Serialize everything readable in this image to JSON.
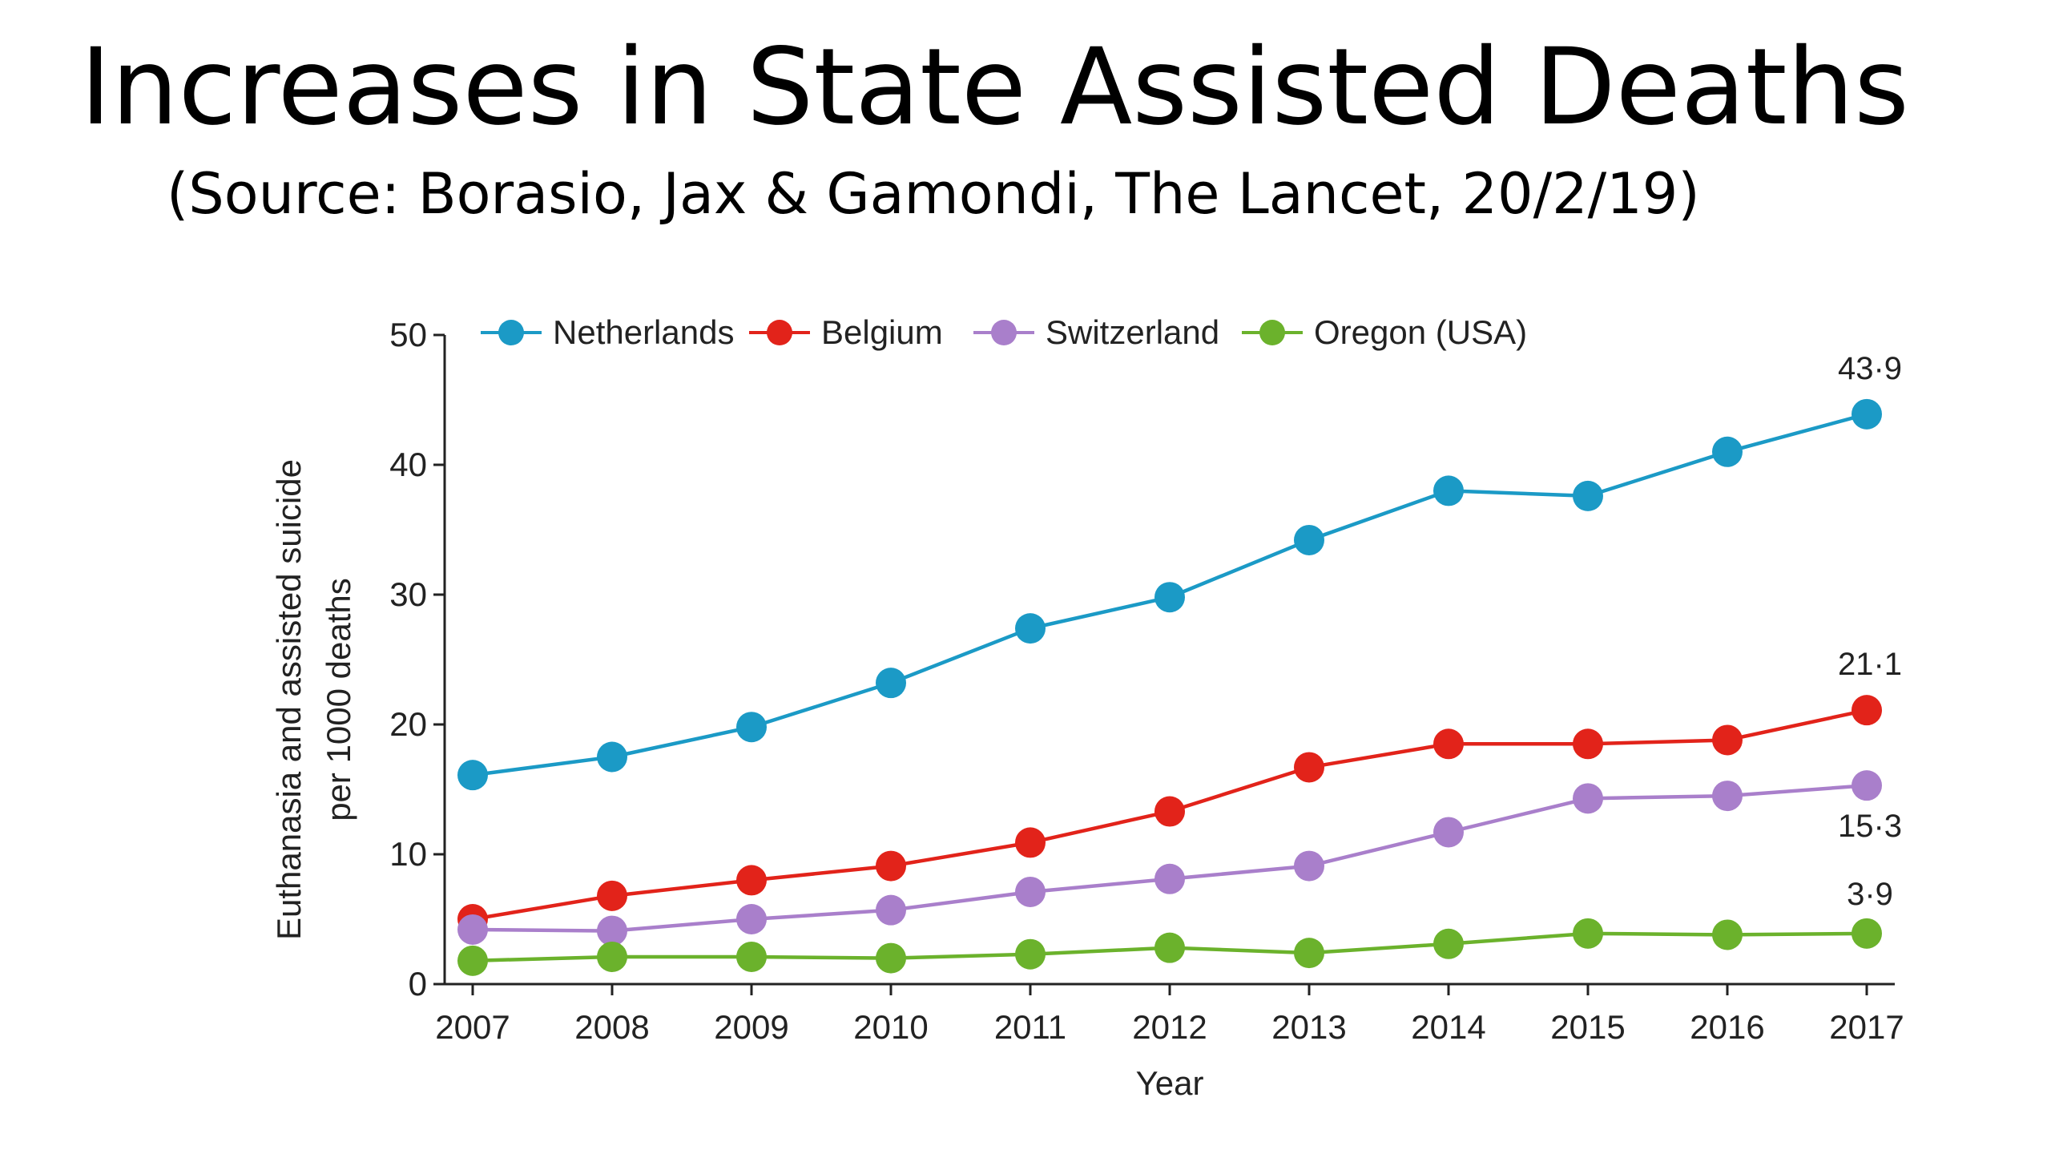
{
  "slide": {
    "title": "Increases in State Assisted Deaths",
    "subtitle": "(Source: Borasio, Jax & Gamondi, The Lancet, 20/2/19)"
  },
  "chart_data": {
    "type": "line",
    "x": [
      2007,
      2008,
      2009,
      2010,
      2011,
      2012,
      2013,
      2014,
      2015,
      2016,
      2017
    ],
    "xlabel": "Year",
    "ylabel_lines": [
      "Euthanasia and assisted suicide",
      "per 1000 deaths"
    ],
    "ylim": [
      0,
      50
    ],
    "yticks": [
      0,
      10,
      20,
      30,
      40,
      50
    ],
    "grid": false,
    "legend_position": "top",
    "series": [
      {
        "name": "Netherlands",
        "color": "#1b9ac6",
        "values": [
          16.1,
          17.5,
          19.8,
          23.2,
          27.4,
          29.8,
          34.2,
          38.0,
          37.6,
          41.0,
          43.9
        ],
        "end_label": "43·9"
      },
      {
        "name": "Belgium",
        "color": "#e2231a",
        "values": [
          5.0,
          6.8,
          8.0,
          9.1,
          10.9,
          13.3,
          16.7,
          18.5,
          18.5,
          18.8,
          21.1
        ],
        "end_label": "21·1"
      },
      {
        "name": "Switzerland",
        "color": "#a97fcb",
        "values": [
          4.2,
          4.1,
          5.0,
          5.7,
          7.1,
          8.1,
          9.1,
          11.7,
          14.3,
          14.5,
          15.3
        ],
        "end_label": "15·3"
      },
      {
        "name": "Oregon (USA)",
        "color": "#6bb22c",
        "values": [
          1.8,
          2.1,
          2.1,
          2.0,
          2.3,
          2.8,
          2.4,
          3.1,
          3.9,
          3.8,
          3.9
        ],
        "end_label": "3·9"
      }
    ]
  }
}
